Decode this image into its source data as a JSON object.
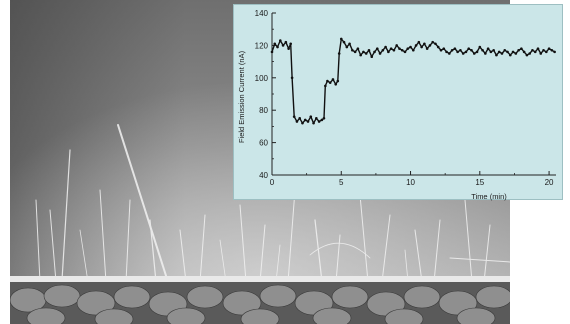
{
  "figure": {
    "photo": {
      "kind": "sem-micrograph",
      "description_free": true
    }
  },
  "chart_data": {
    "type": "line",
    "xlabel": "Time (min)",
    "ylabel": "Field Emission Current (nA)",
    "xlim": [
      0,
      20.5
    ],
    "ylim": [
      40,
      140
    ],
    "xticks": [
      0,
      5,
      10,
      15,
      20
    ],
    "yticks": [
      40,
      60,
      80,
      100,
      120,
      140
    ],
    "grid": false,
    "colors": {
      "line": "#111111",
      "background": "#cbe6e8"
    },
    "series": [
      {
        "x": [
          0.0,
          0.2,
          0.4,
          0.6,
          0.8,
          1.0,
          1.2,
          1.35,
          1.45,
          1.6,
          1.8,
          2.0,
          2.2,
          2.4,
          2.6,
          2.8,
          3.0,
          3.2,
          3.4,
          3.6,
          3.75,
          3.85,
          4.0,
          4.2,
          4.4,
          4.6,
          4.75,
          4.85,
          5.0,
          5.2,
          5.4,
          5.6,
          5.8,
          6.0,
          6.2,
          6.4,
          6.6,
          6.8,
          7.0,
          7.2,
          7.4,
          7.6,
          7.8,
          8.0,
          8.2,
          8.4,
          8.6,
          8.8,
          9.0,
          9.2,
          9.4,
          9.6,
          9.8,
          10.0,
          10.2,
          10.4,
          10.6,
          10.8,
          11.0,
          11.2,
          11.4,
          11.6,
          11.8,
          12.0,
          12.2,
          12.4,
          12.6,
          12.8,
          13.0,
          13.2,
          13.4,
          13.6,
          13.8,
          14.0,
          14.2,
          14.4,
          14.6,
          14.8,
          15.0,
          15.2,
          15.4,
          15.6,
          15.8,
          16.0,
          16.2,
          16.4,
          16.6,
          16.8,
          17.0,
          17.2,
          17.4,
          17.6,
          17.8,
          18.0,
          18.2,
          18.4,
          18.6,
          18.8,
          19.0,
          19.2,
          19.4,
          19.6,
          19.8,
          20.0,
          20.2,
          20.4
        ],
        "values": [
          116,
          121,
          119,
          123,
          120,
          122,
          118,
          121,
          100,
          76,
          73,
          75,
          72,
          74,
          73,
          76,
          72,
          75,
          73,
          74,
          75,
          95,
          98,
          97,
          99,
          96,
          98,
          115,
          124,
          122,
          119,
          121,
          117,
          116,
          118,
          114,
          116,
          115,
          117,
          113,
          116,
          118,
          115,
          117,
          119,
          116,
          118,
          117,
          120,
          118,
          117,
          116,
          118,
          119,
          117,
          120,
          122,
          119,
          121,
          118,
          120,
          122,
          121,
          119,
          117,
          118,
          116,
          115,
          117,
          118,
          116,
          117,
          115,
          116,
          118,
          117,
          115,
          116,
          119,
          117,
          115,
          118,
          116,
          117,
          114,
          116,
          115,
          117,
          116,
          114,
          116,
          115,
          117,
          118,
          116,
          114,
          115,
          117,
          116,
          118,
          115,
          117,
          116,
          118,
          117,
          116
        ]
      }
    ]
  }
}
